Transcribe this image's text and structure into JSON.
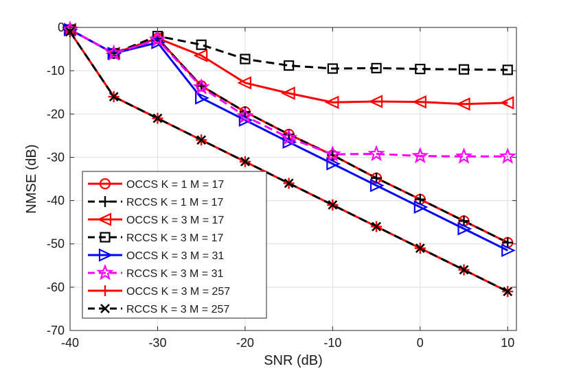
{
  "chart_data": {
    "type": "line",
    "title": "",
    "xlabel": "SNR (dB)",
    "ylabel": "NMSE (dB)",
    "xlim": [
      -40,
      11
    ],
    "ylim": [
      -70,
      0
    ],
    "xticks": [
      -40,
      -30,
      -20,
      -10,
      0,
      10
    ],
    "yticks": [
      0,
      -10,
      -20,
      -30,
      -40,
      -50,
      -60,
      -70
    ],
    "xtick_labels": [
      "-40",
      "-30",
      "-20",
      "-10",
      "0",
      "10"
    ],
    "ytick_labels": [
      "0",
      "-10",
      "-20",
      "-30",
      "-40",
      "-50",
      "-60",
      "-70"
    ],
    "grid": true,
    "legend_position": "bottom-left",
    "series": [
      {
        "name": "OCCS K = 1 M = 17",
        "color": "#ff0000",
        "dash": "solid",
        "marker": "circle",
        "x": [
          -40,
          -35,
          -30,
          -25,
          -20,
          -15,
          -10,
          -5,
          0,
          5,
          10
        ],
        "y": [
          -0.5,
          -6,
          -2.5,
          -13.5,
          -19.5,
          -24.7,
          -29.5,
          -34.8,
          -39.7,
          -44.7,
          -49.7
        ]
      },
      {
        "name": "RCCS K = 1 M = 17",
        "color": "#000000",
        "dash": "dashed",
        "marker": "plus",
        "x": [
          -40,
          -35,
          -30,
          -25,
          -20,
          -15,
          -10,
          -5,
          0,
          5,
          10
        ],
        "y": [
          -0.5,
          -6,
          -2.5,
          -13.5,
          -19.5,
          -24.7,
          -29.5,
          -34.8,
          -39.7,
          -44.7,
          -49.7
        ]
      },
      {
        "name": "OCCS K = 3 M = 17",
        "color": "#ff0000",
        "dash": "solid",
        "marker": "triangle-left",
        "x": [
          -40,
          -35,
          -30,
          -25,
          -20,
          -15,
          -10,
          -5,
          0,
          5,
          10
        ],
        "y": [
          -0.5,
          -6,
          -2.5,
          -6.5,
          -12.8,
          -15.2,
          -17.3,
          -17.1,
          -17.2,
          -17.7,
          -17.4
        ]
      },
      {
        "name": "RCCS K = 3 M = 17",
        "color": "#000000",
        "dash": "dashed",
        "marker": "square",
        "x": [
          -40,
          -35,
          -30,
          -25,
          -20,
          -15,
          -10,
          -5,
          0,
          5,
          10
        ],
        "y": [
          -0.5,
          -6,
          -2,
          -4,
          -7.3,
          -8.8,
          -9.5,
          -9.4,
          -9.6,
          -9.7,
          -9.8
        ]
      },
      {
        "name": "OCCS K = 3 M = 31",
        "color": "#0000ff",
        "dash": "solid",
        "marker": "triangle-right",
        "x": [
          -40,
          -35,
          -30,
          -25,
          -20,
          -15,
          -10,
          -5,
          0,
          5,
          10
        ],
        "y": [
          -0.5,
          -6,
          -3.5,
          -16.3,
          -21.4,
          -26.5,
          -31.5,
          -36.5,
          -41.5,
          -46.5,
          -51.5
        ]
      },
      {
        "name": "RCCS K = 3 M = 31",
        "color": "#ff00ff",
        "dash": "dashed",
        "marker": "star",
        "x": [
          -40,
          -35,
          -30,
          -25,
          -20,
          -15,
          -10,
          -5,
          0,
          5,
          10
        ],
        "y": [
          -0.5,
          -6,
          -2.8,
          -13.8,
          -20.5,
          -25.5,
          -29.3,
          -29.2,
          -29.7,
          -29.8,
          -29.8
        ]
      },
      {
        "name": "OCCS K = 3 M = 257",
        "color": "#ff0000",
        "dash": "solid",
        "marker": "plus",
        "x": [
          -40,
          -35,
          -30,
          -25,
          -20,
          -15,
          -10,
          -5,
          0,
          5,
          10
        ],
        "y": [
          -1,
          -16,
          -21,
          -26,
          -31,
          -36,
          -41,
          -46,
          -51,
          -56,
          -61
        ]
      },
      {
        "name": "RCCS K = 3 M = 257",
        "color": "#000000",
        "dash": "dashed",
        "marker": "x",
        "x": [
          -40,
          -35,
          -30,
          -25,
          -20,
          -15,
          -10,
          -5,
          0,
          5,
          10
        ],
        "y": [
          -1,
          -16,
          -21,
          -26,
          -31,
          -36,
          -41,
          -46,
          -51,
          -56,
          -61
        ]
      }
    ]
  }
}
